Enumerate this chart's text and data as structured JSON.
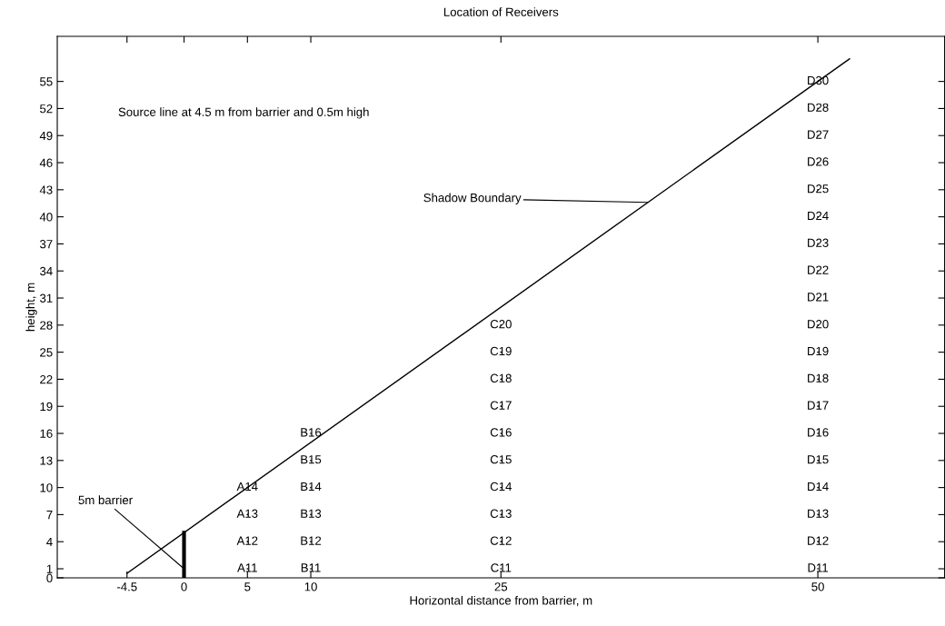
{
  "chart_data": {
    "type": "scatter",
    "title": "Location of Receivers",
    "xlabel": "Horizontal distance from barrier, m",
    "ylabel": "height, m",
    "xlim": [
      -10,
      60
    ],
    "xticks": [
      -4.5,
      0,
      5,
      10,
      25,
      50
    ],
    "ylim": [
      0,
      60
    ],
    "yticks": [
      0,
      1,
      4,
      7,
      10,
      13,
      16,
      19,
      22,
      25,
      28,
      31,
      34,
      37,
      40,
      43,
      46,
      49,
      52,
      55
    ],
    "grid": false,
    "legend": false,
    "series": [
      {
        "type": "line",
        "color": "#000000",
        "x": [
          -4.5,
          52.5
        ],
        "values": [
          0.5,
          57.5
        ],
        "line_style": "solid"
      },
      {
        "type": "line",
        "color": "#000000",
        "x": [
          0,
          0
        ],
        "values": [
          0,
          5
        ],
        "line_style": "solid"
      },
      {
        "color": "#000000",
        "x": [
          5,
          5,
          5,
          5
        ],
        "values": [
          1,
          4,
          7,
          10
        ],
        "value_labels": [
          "A11",
          "A12",
          "A13",
          "A14"
        ]
      },
      {
        "color": "#000000",
        "x": [
          10,
          10,
          10,
          10,
          10,
          10
        ],
        "values": [
          1,
          4,
          7,
          10,
          13,
          16
        ],
        "value_labels": [
          "B11",
          "B12",
          "B13",
          "B14",
          "B15",
          "B16"
        ]
      },
      {
        "color": "#000000",
        "x": [
          25,
          25,
          25,
          25,
          25,
          25,
          25,
          25,
          25,
          25
        ],
        "values": [
          1,
          4,
          7,
          10,
          13,
          16,
          19,
          22,
          25,
          28
        ],
        "value_labels": [
          "C11",
          "C12",
          "C13",
          "C14",
          "C15",
          "C16",
          "C17",
          "C18",
          "C19",
          "C20"
        ]
      },
      {
        "color": "#000000",
        "x": [
          50,
          50,
          50,
          50,
          50,
          50,
          50,
          50,
          50,
          50,
          50,
          50,
          50,
          50,
          50,
          50,
          50,
          50,
          50
        ],
        "values": [
          1,
          4,
          7,
          10,
          13,
          16,
          19,
          22,
          25,
          28,
          31,
          34,
          37,
          40,
          43,
          46,
          49,
          52,
          55
        ],
        "value_labels": [
          "D11",
          "D12",
          "D13",
          "D14",
          "D15",
          "D16",
          "D17",
          "D18",
          "D19",
          "D20",
          "D21",
          "D22",
          "D23",
          "D24",
          "D25",
          "D26",
          "D27",
          "D28",
          "D30"
        ]
      }
    ],
    "annotations": [
      "Source line at 4.5 m from barrier and 0.5m high",
      {
        "text": "Shadow Boundary",
        "x": 36.6,
        "y": 41.6
      },
      {
        "text": "5m barrier",
        "x": 0,
        "y": 1
      }
    ]
  }
}
